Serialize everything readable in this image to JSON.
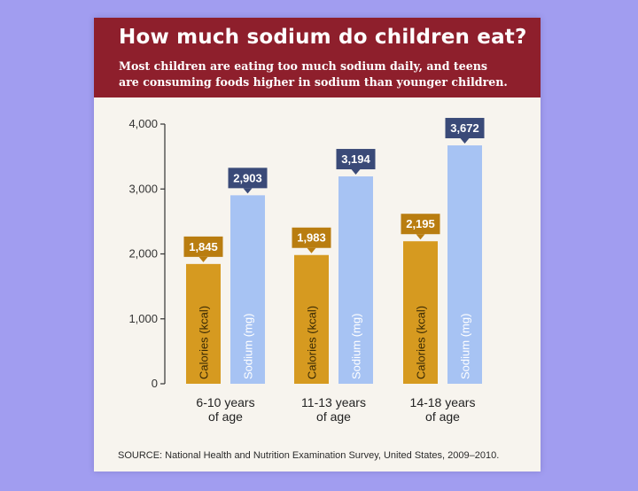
{
  "header": {
    "title": "How much sodium do children eat?",
    "subtitle_line1": "Most children are eating too much sodium daily, and teens",
    "subtitle_line2": "are consuming foods higher in sodium than younger children."
  },
  "source": "SOURCE: National Health and Nutrition Examination Survey, United States, 2009–2010.",
  "colors": {
    "background": "#a19df0",
    "header": "#8e1f2c",
    "calories": "#d69a20",
    "calories_label_bg": "#b97d10",
    "sodium": "#a7c3f3",
    "sodium_label_bg": "#3a4a78",
    "axis": "#333333"
  },
  "chart_data": {
    "type": "bar",
    "categories": [
      {
        "line1": "6-10 years",
        "line2": "of age"
      },
      {
        "line1": "11-13 years",
        "line2": "of age"
      },
      {
        "line1": "14-18 years",
        "line2": "of age"
      }
    ],
    "series": [
      {
        "name": "Calories (kcal)",
        "values": [
          1845,
          1983,
          2195
        ],
        "labels": [
          "1,845",
          "1,983",
          "2,195"
        ],
        "color_key": "calories",
        "label_bg_key": "calories_label_bg"
      },
      {
        "name": "Sodium (mg)",
        "values": [
          2903,
          3194,
          3672
        ],
        "labels": [
          "2,903",
          "3,194",
          "3,672"
        ],
        "color_key": "sodium",
        "label_bg_key": "sodium_label_bg"
      }
    ],
    "yticks": [
      0,
      1000,
      2000,
      3000,
      4000
    ],
    "ytick_labels": [
      "0",
      "1,000",
      "2,000",
      "3,000",
      "4,000"
    ],
    "ylim": [
      0,
      4000
    ],
    "xlabel": "",
    "ylabel": "",
    "legend": "none (series names written inside bars)"
  }
}
